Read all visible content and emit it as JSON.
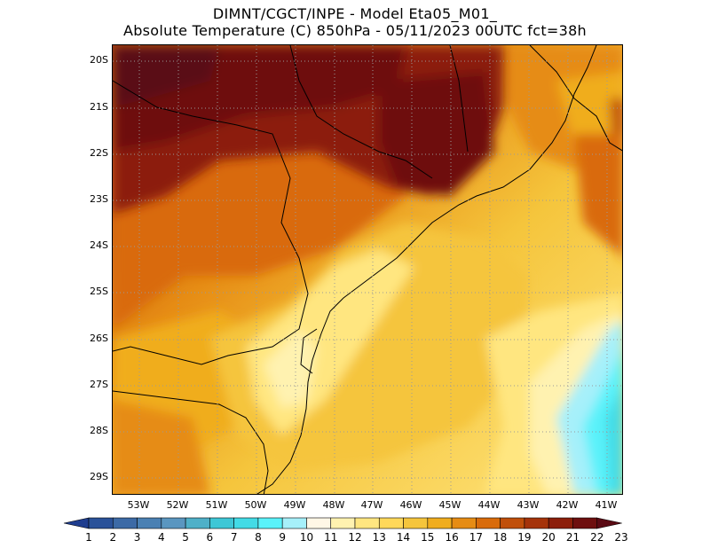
{
  "header": {
    "line1": "DIMNT/CGCT/INPE -  Model Eta05_M01_",
    "line2": "Absolute Temperature (C) 850hPa -  05/11/2023 00UTC fct=38h"
  },
  "map": {
    "lat_labels": [
      "20S",
      "21S",
      "22S",
      "23S",
      "24S",
      "25S",
      "26S",
      "27S",
      "28S",
      "29S"
    ],
    "lon_labels": [
      "53W",
      "52W",
      "51W",
      "50W",
      "49W",
      "48W",
      "47W",
      "46W",
      "45W",
      "44W",
      "43W",
      "42W",
      "41W"
    ]
  },
  "colorbar": {
    "labels": [
      "1",
      "2",
      "3",
      "4",
      "5",
      "6",
      "7",
      "8",
      "9",
      "10",
      "11",
      "12",
      "13",
      "14",
      "15",
      "16",
      "17",
      "18",
      "19",
      "20",
      "21",
      "22",
      "23"
    ],
    "colors": [
      "#1e3d8f",
      "#2a5299",
      "#3c6aa6",
      "#4a80b3",
      "#5a96c0",
      "#4fb0c8",
      "#3ec7d6",
      "#43dbe6",
      "#5af2fa",
      "#a6f0fa",
      "#fff7e6",
      "#fff2b0",
      "#ffe680",
      "#ffd85a",
      "#f5c53c",
      "#f0ad1e",
      "#e68c14",
      "#d96b0a",
      "#c04f0a",
      "#a5330a",
      "#8c1e0a",
      "#6e0f0f",
      "#5a0a14"
    ]
  }
}
